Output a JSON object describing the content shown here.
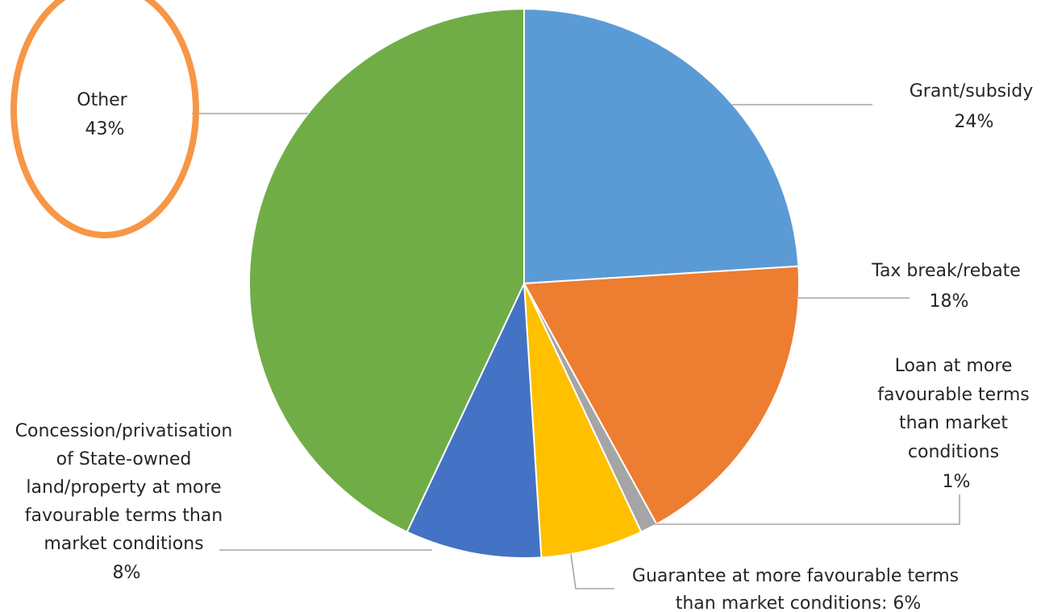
{
  "chart_data": {
    "type": "pie",
    "title": "",
    "slices": [
      {
        "label": "Grant/subsidy",
        "value": 24,
        "value_label": "24%",
        "color": "#5b9bd5"
      },
      {
        "label": "Tax break/rebate",
        "value": 18,
        "value_label": "18%",
        "color": "#ed7d31"
      },
      {
        "label": "Loan at more favourable terms than market conditions",
        "value": 1,
        "value_label": "1%",
        "color": "#a5a5a5"
      },
      {
        "label": "Guarantee at more favourable terms than market conditions",
        "value": 6,
        "value_label": "6%",
        "color": "#ffc000"
      },
      {
        "label": "Concession/privatisation of State-owned land/property at more favourable terms than market conditions",
        "value": 8,
        "value_label": "8%",
        "color": "#4472c4"
      },
      {
        "label": "Other",
        "value": 43,
        "value_label": "43%",
        "color": "#70ad47"
      }
    ],
    "highlight": {
      "slice": "Other",
      "shape": "ellipse",
      "color": "#f79646"
    }
  },
  "labels": {
    "grant": [
      "Grant/subsidy",
      "24%"
    ],
    "tax": [
      "Tax break/rebate",
      "18%"
    ],
    "loan": [
      "Loan at more",
      "favourable terms",
      "than market",
      "conditions",
      "1%"
    ],
    "guarantee": [
      "Guarantee at more favourable terms",
      "than market conditions: 6%"
    ],
    "concession": [
      "Concession/privatisation",
      "of State-owned",
      "land/property at more",
      "favourable terms than",
      "market conditions",
      "8%"
    ],
    "other": [
      "Other",
      "43%"
    ]
  }
}
